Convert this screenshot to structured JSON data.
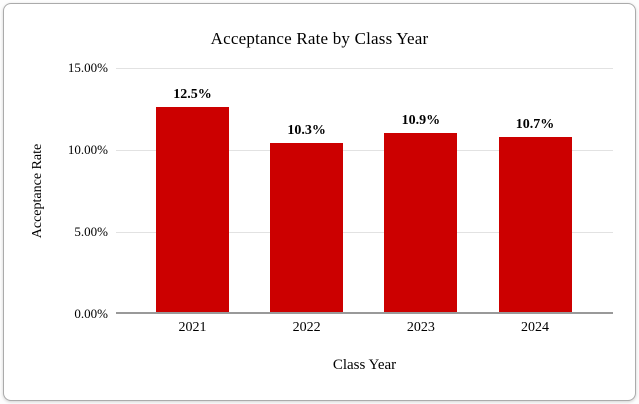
{
  "chart": {
    "title": "Acceptance Rate by Class Year",
    "y_axis_label": "Acceptance Rate",
    "x_axis_label": "Class Year",
    "bar_color": "#cc0000",
    "gridline_color": "#e2e2e2",
    "axis_line_color": "#999999",
    "y_ticks": [
      "15.00%",
      "10.00%",
      "5.00%",
      "0.00%"
    ]
  },
  "chart_data": {
    "type": "bar",
    "title": "Acceptance Rate by Class Year",
    "xlabel": "Class Year",
    "ylabel": "Acceptance Rate",
    "categories": [
      "2021",
      "2022",
      "2023",
      "2024"
    ],
    "values": [
      12.5,
      10.3,
      10.9,
      10.7
    ],
    "value_labels": [
      "12.5%",
      "10.3%",
      "10.9%",
      "10.7%"
    ],
    "ylim": [
      0,
      15
    ],
    "y_tick_step": 5,
    "grid": true,
    "legend": false,
    "bar_color": "#cc0000"
  }
}
